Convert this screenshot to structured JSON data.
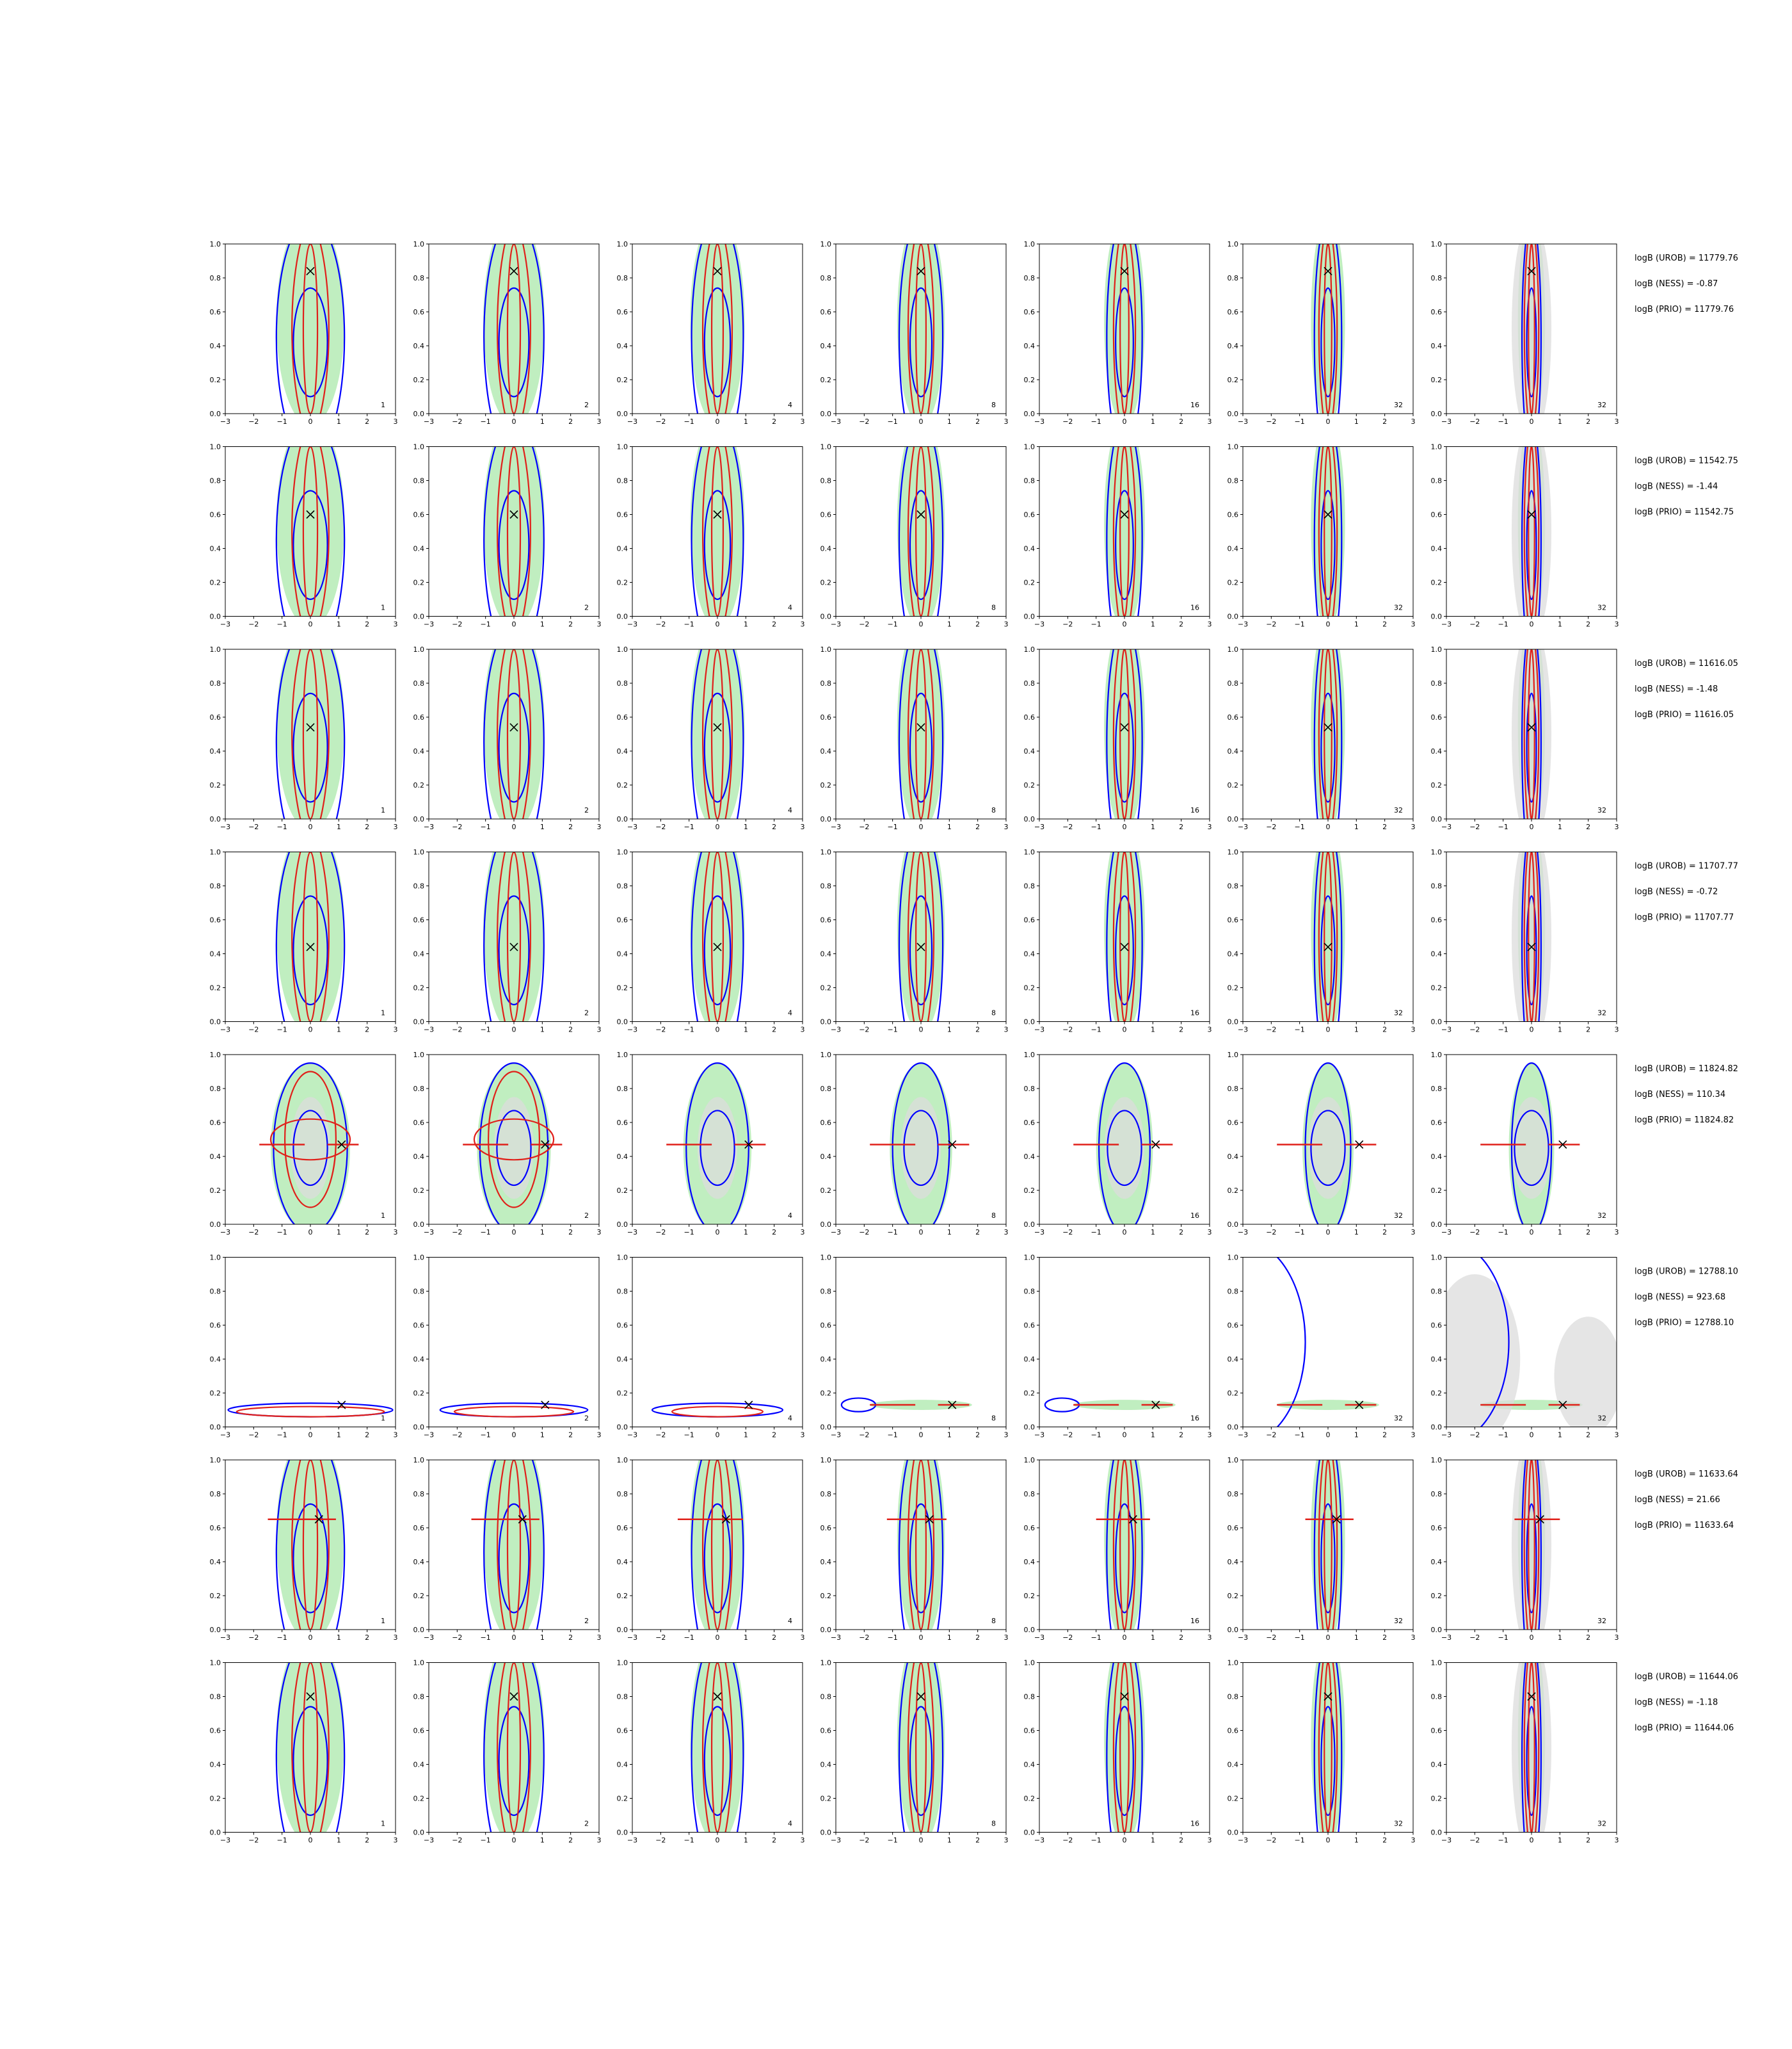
{
  "chart_data": {
    "type": "contour",
    "rows": 8,
    "cols": 7,
    "xlim": [
      -3,
      3
    ],
    "ylim": [
      0.0,
      1.0
    ],
    "xticks": [
      "−3",
      "−2",
      "−1",
      "0",
      "1",
      "2",
      "3"
    ],
    "yticks": [
      "0.0",
      "0.2",
      "0.4",
      "0.6",
      "0.8",
      "1.0"
    ],
    "column_labels": [
      "1",
      "2",
      "4",
      "8",
      "16",
      "32",
      "32"
    ],
    "colors": {
      "blue_contour": "#0000ff",
      "red_contour": "#e0201a",
      "green_fill": "#b5ebb5",
      "grey_fill": "#dcdcdc",
      "marker": "#000000"
    },
    "rows_data": [
      {
        "marker": [
          0.0,
          0.84
        ],
        "red_bar": false,
        "logB_UROB": "logB (UROB) = 11779.76",
        "logB_NESS": "logB (NESS) = -0.87",
        "logB_PRIO": "logB (PRIO) = 11779.76"
      },
      {
        "marker": [
          0.0,
          0.6
        ],
        "red_bar": false,
        "logB_UROB": "logB (UROB) = 11542.75",
        "logB_NESS": "logB (NESS) = -1.44",
        "logB_PRIO": "logB (PRIO) = 11542.75"
      },
      {
        "marker": [
          0.0,
          0.54
        ],
        "red_bar": false,
        "logB_UROB": "logB (UROB) = 11616.05",
        "logB_NESS": "logB (NESS) = -1.48",
        "logB_PRIO": "logB (PRIO) = 11616.05"
      },
      {
        "marker": [
          0.0,
          0.44
        ],
        "red_bar": false,
        "logB_UROB": "logB (UROB) = 11707.77",
        "logB_NESS": "logB (NESS) = -0.72",
        "logB_PRIO": "logB (PRIO) = 11707.77"
      },
      {
        "marker": [
          1.1,
          0.47
        ],
        "red_bar": true,
        "logB_UROB": "logB (UROB) = 11824.82",
        "logB_NESS": "logB (NESS) = 110.34",
        "logB_PRIO": "logB (PRIO) = 11824.82"
      },
      {
        "marker": [
          1.1,
          0.13
        ],
        "red_bar": true,
        "logB_UROB": "logB (UROB) = 12788.10",
        "logB_NESS": "logB (NESS) = 923.68",
        "logB_PRIO": "logB (PRIO) = 12788.10"
      },
      {
        "marker": [
          0.3,
          0.65
        ],
        "red_bar": true,
        "logB_UROB": "logB (UROB) = 11633.64",
        "logB_NESS": "logB (NESS) = 21.66",
        "logB_PRIO": "logB (PRIO) = 11633.64"
      },
      {
        "marker": [
          0.0,
          0.8
        ],
        "red_bar": false,
        "logB_UROB": "logB (UROB) = 11644.06",
        "logB_NESS": "logB (NESS) = -1.18",
        "logB_PRIO": "logB (PRIO) = 11644.06"
      }
    ]
  }
}
